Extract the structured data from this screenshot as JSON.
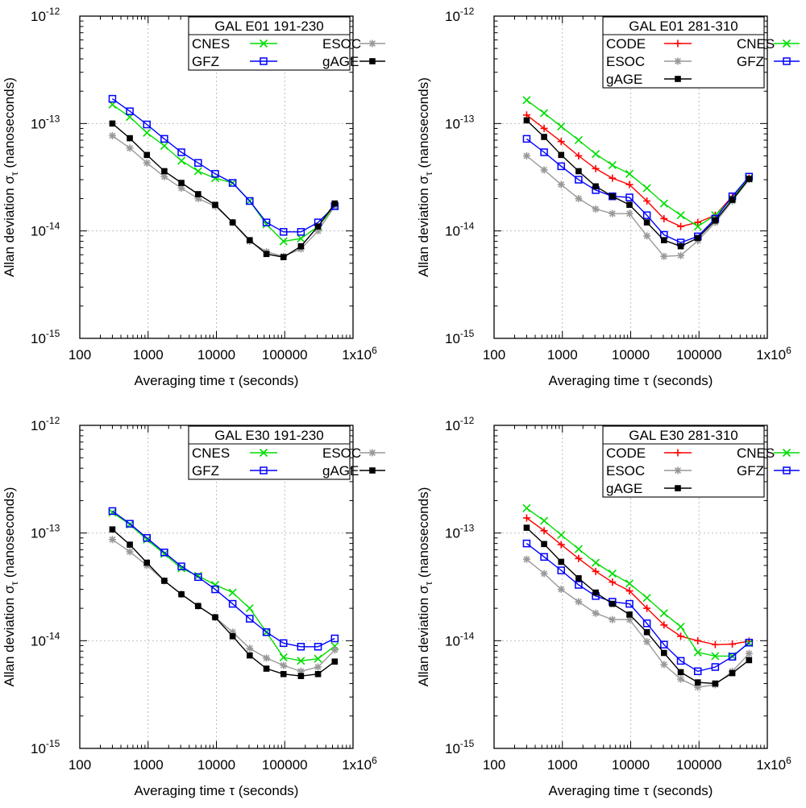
{
  "common": {
    "xlabel": "Averaging time τ (seconds)",
    "ylabel_main": "Allan deviation σ",
    "ylabel_sub": "τ",
    "ylabel_tail": " (nanoseconds)",
    "x_ticks": [
      {
        "value": 100,
        "label": "100"
      },
      {
        "value": 1000,
        "label": "1000"
      },
      {
        "value": 10000,
        "label": "10000"
      },
      {
        "value": 100000,
        "label": "100000"
      },
      {
        "value": 1000000,
        "label": "1x10",
        "sup": "6"
      }
    ],
    "y_ticks": [
      {
        "value": 1e-15,
        "base": "10",
        "sup": "-15"
      },
      {
        "value": 1e-14,
        "base": "10",
        "sup": "-14"
      },
      {
        "value": 1e-13,
        "base": "10",
        "sup": "-13"
      },
      {
        "value": 1e-12,
        "base": "10",
        "sup": "-12"
      }
    ]
  },
  "colors": {
    "CODE": "#ff0000",
    "CNES": "#00dd00",
    "ESOC": "#999999",
    "GFZ": "#0000ff",
    "gAGE": "#000000"
  },
  "markers": {
    "CODE": "plus",
    "CNES": "cross",
    "ESOC": "star",
    "GFZ": "open-square",
    "gAGE": "filled-square"
  },
  "chart_data": [
    {
      "type": "line",
      "title": "GAL E01 191-230",
      "xscale": "log",
      "yscale": "log",
      "xlim": [
        100,
        1000000
      ],
      "ylim": [
        1e-15,
        1e-12
      ],
      "grid": true,
      "legend_position": "top-right",
      "x": [
        300,
        540,
        960,
        1728,
        3072,
        5400,
        9600,
        17280,
        30720,
        54000,
        96000,
        172800,
        307200,
        540000
      ],
      "series": [
        {
          "name": "CNES",
          "values": [
            1.5e-13,
            1.15e-13,
            8.2e-14,
            6.2e-14,
            4.5e-14,
            3.6e-14,
            3.1e-14,
            2.8e-14,
            1.9e-14,
            1.15e-14,
            8e-15,
            8.5e-15,
            1.1e-14,
            1.7e-14
          ]
        },
        {
          "name": "ESOC",
          "values": [
            7.7e-14,
            5.9e-14,
            4.3e-14,
            3.2e-14,
            2.5e-14,
            2e-14,
            1.7e-14,
            1.2e-14,
            8e-15,
            6.4e-15,
            5.8e-15,
            6.8e-15,
            1e-14,
            1.7e-14
          ]
        },
        {
          "name": "GFZ",
          "values": [
            1.7e-13,
            1.3e-13,
            9.8e-14,
            7.2e-14,
            5.4e-14,
            4.3e-14,
            3.4e-14,
            2.8e-14,
            1.9e-14,
            1.2e-14,
            9.8e-15,
            9.8e-15,
            1.2e-14,
            1.7e-14
          ]
        },
        {
          "name": "gAGE",
          "values": [
            1e-13,
            7.3e-14,
            5.1e-14,
            3.6e-14,
            2.8e-14,
            2.2e-14,
            1.75e-14,
            1.2e-14,
            8.2e-15,
            6.1e-15,
            5.7e-15,
            7.2e-15,
            1.1e-14,
            1.8e-14
          ]
        }
      ]
    },
    {
      "type": "line",
      "title": "GAL E01 281-310",
      "xscale": "log",
      "yscale": "log",
      "xlim": [
        100,
        1000000
      ],
      "ylim": [
        1e-15,
        1e-12
      ],
      "grid": true,
      "legend_position": "top-right",
      "x": [
        300,
        540,
        960,
        1728,
        3072,
        5400,
        9600,
        17280,
        30720,
        54000,
        96000,
        172800,
        307200,
        540000
      ],
      "series": [
        {
          "name": "CODE",
          "values": [
            1.2e-13,
            9e-14,
            6.8e-14,
            5e-14,
            3.8e-14,
            3.1e-14,
            2.7e-14,
            1.9e-14,
            1.3e-14,
            1.1e-14,
            1.2e-14,
            1.4e-14,
            2.1e-14,
            3.1e-14
          ]
        },
        {
          "name": "CNES",
          "values": [
            1.65e-13,
            1.25e-13,
            9.4e-14,
            7e-14,
            5.2e-14,
            4.1e-14,
            3.4e-14,
            2.5e-14,
            1.8e-14,
            1.4e-14,
            1.1e-14,
            1.4e-14,
            2e-14,
            3.1e-14
          ]
        },
        {
          "name": "ESOC",
          "values": [
            5e-14,
            3.7e-14,
            2.7e-14,
            2e-14,
            1.6e-14,
            1.45e-14,
            1.45e-14,
            9e-15,
            5.8e-15,
            5.9e-15,
            8.1e-15,
            1.2e-14,
            1.9e-14,
            3e-14
          ]
        },
        {
          "name": "GFZ",
          "values": [
            7.2e-14,
            5.4e-14,
            4e-14,
            3e-14,
            2.4e-14,
            2.1e-14,
            2.05e-14,
            1.4e-14,
            9.2e-15,
            7.8e-15,
            8.9e-15,
            1.3e-14,
            2.1e-14,
            3.2e-14
          ]
        },
        {
          "name": "gAGE",
          "values": [
            1.07e-13,
            7.5e-14,
            5.1e-14,
            3.6e-14,
            2.6e-14,
            2.1e-14,
            1.75e-14,
            1.2e-14,
            8.2e-15,
            7.2e-15,
            8.6e-15,
            1.25e-14,
            1.95e-14,
            3.05e-14
          ]
        }
      ]
    },
    {
      "type": "line",
      "title": "GAL E30 191-230",
      "xscale": "log",
      "yscale": "log",
      "xlim": [
        100,
        1000000
      ],
      "ylim": [
        1e-15,
        1e-12
      ],
      "grid": true,
      "legend_position": "top-right",
      "x": [
        300,
        540,
        960,
        1728,
        3072,
        5400,
        9600,
        17280,
        30720,
        54000,
        96000,
        172800,
        307200,
        540000
      ],
      "series": [
        {
          "name": "CNES",
          "values": [
            1.55e-13,
            1.2e-13,
            8.7e-14,
            6.4e-14,
            4.7e-14,
            4e-14,
            3.3e-14,
            2.8e-14,
            2e-14,
            1.2e-14,
            7e-15,
            6.5e-15,
            6.8e-15,
            8.9e-15
          ]
        },
        {
          "name": "ESOC",
          "values": [
            8.7e-14,
            6.7e-14,
            5e-14,
            3.6e-14,
            2.7e-14,
            2.1e-14,
            1.65e-14,
            1.2e-14,
            8.5e-15,
            6.9e-15,
            5.9e-15,
            5.2e-15,
            5.7e-15,
            8.2e-15
          ]
        },
        {
          "name": "GFZ",
          "values": [
            1.6e-13,
            1.22e-13,
            9e-14,
            6.6e-14,
            4.9e-14,
            3.9e-14,
            3e-14,
            2.2e-14,
            1.6e-14,
            1.2e-14,
            9.5e-15,
            8.8e-15,
            8.8e-15,
            1.05e-14
          ]
        },
        {
          "name": "gAGE",
          "values": [
            1.08e-13,
            7.8e-14,
            5.3e-14,
            3.6e-14,
            2.7e-14,
            2.1e-14,
            1.65e-14,
            1.1e-14,
            7.3e-15,
            5.5e-15,
            4.9e-15,
            4.7e-15,
            4.9e-15,
            6.4e-15
          ]
        }
      ]
    },
    {
      "type": "line",
      "title": "GAL E30 281-310",
      "xscale": "log",
      "yscale": "log",
      "xlim": [
        100,
        1000000
      ],
      "ylim": [
        1e-15,
        1e-12
      ],
      "grid": true,
      "legend_position": "top-right",
      "x": [
        300,
        540,
        960,
        1728,
        3072,
        5400,
        9600,
        17280,
        30720,
        54000,
        96000,
        172800,
        307200,
        540000
      ],
      "series": [
        {
          "name": "CODE",
          "values": [
            1.38e-13,
            1.05e-13,
            7.8e-14,
            5.8e-14,
            4.4e-14,
            3.5e-14,
            2.9e-14,
            2e-14,
            1.4e-14,
            1.1e-14,
            1e-14,
            9.2e-15,
            9.3e-15,
            9.9e-15
          ]
        },
        {
          "name": "CNES",
          "values": [
            1.7e-13,
            1.3e-13,
            9.6e-14,
            7.1e-14,
            5.3e-14,
            4.2e-14,
            3.4e-14,
            2.5e-14,
            1.8e-14,
            1.35e-14,
            7.8e-15,
            7.2e-15,
            7.2e-15,
            9.5e-15
          ]
        },
        {
          "name": "ESOC",
          "values": [
            5.7e-14,
            4.2e-14,
            3e-14,
            2.3e-14,
            1.8e-14,
            1.57e-14,
            1.57e-14,
            9.8e-15,
            6e-15,
            4.4e-15,
            3.7e-15,
            3.9e-15,
            5.2e-15,
            7.6e-15
          ]
        },
        {
          "name": "GFZ",
          "values": [
            8e-14,
            6e-14,
            4.5e-14,
            3.3e-14,
            2.6e-14,
            2.3e-14,
            2.2e-14,
            1.45e-14,
            9.2e-15,
            6.5e-15,
            5.2e-15,
            5.7e-15,
            7.1e-15,
            9.6e-15
          ]
        },
        {
          "name": "gAGE",
          "values": [
            1.12e-13,
            7.9e-14,
            5.4e-14,
            3.8e-14,
            2.8e-14,
            2.2e-14,
            1.75e-14,
            1.2e-14,
            7.7e-15,
            5.1e-15,
            4.1e-15,
            4e-15,
            5e-15,
            6.6e-15
          ]
        }
      ]
    }
  ]
}
